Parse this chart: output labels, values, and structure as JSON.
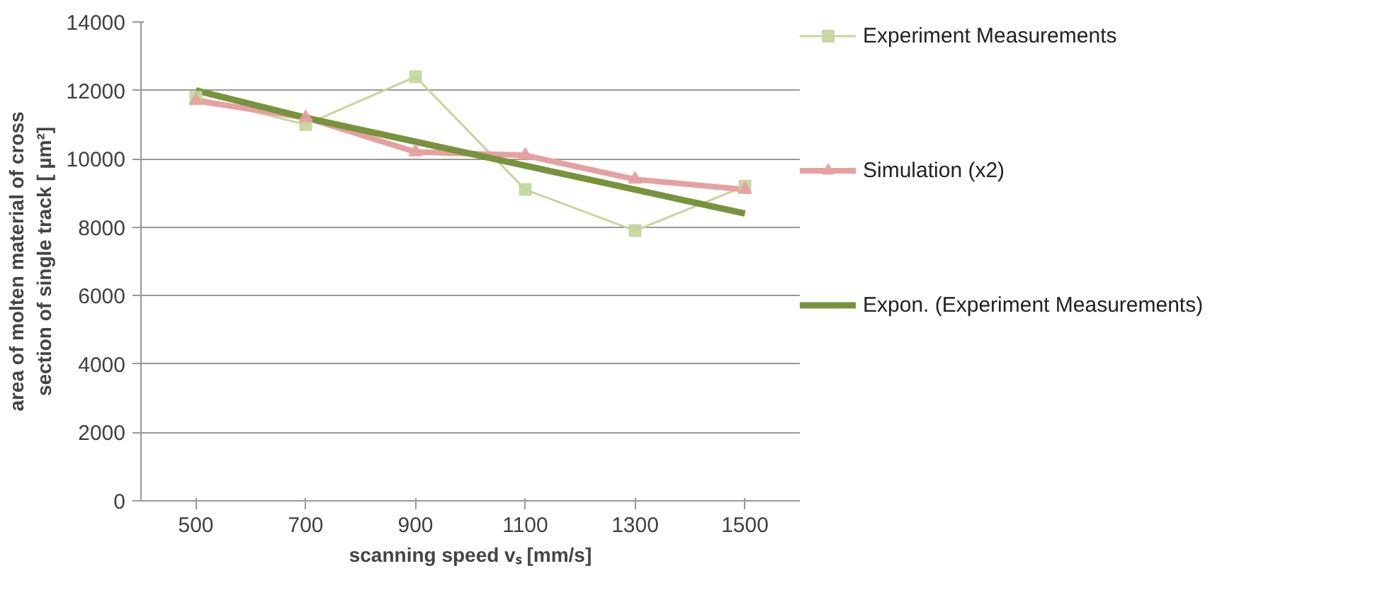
{
  "chart_data": {
    "type": "line",
    "xlabel": "scanning speed vₛ [mm/s]",
    "ylabel": "area of molten material of cross section of single track [ µm²]",
    "categories": [
      "500",
      "700",
      "900",
      "1100",
      "1300",
      "1500"
    ],
    "series": [
      {
        "name": "Experiment Measurements",
        "color": "#c3d69b",
        "marker": "square",
        "values": [
          11800,
          11000,
          12400,
          9100,
          7900,
          9200
        ]
      },
      {
        "name": "Simulation (x2)",
        "color": "#e6a0a0",
        "marker": "triangle",
        "values": [
          11700,
          11200,
          10200,
          10100,
          9400,
          9100
        ]
      },
      {
        "name": "Expon. (Experiment Measurements)",
        "color": "#77933c",
        "marker": "none",
        "values": [
          12000,
          11200,
          10500,
          9800,
          9100,
          8400
        ]
      }
    ],
    "ylim": [
      0,
      14000
    ],
    "yticks": [
      0,
      2000,
      4000,
      6000,
      8000,
      10000,
      12000,
      14000
    ],
    "grid": "y",
    "legend": "right"
  }
}
